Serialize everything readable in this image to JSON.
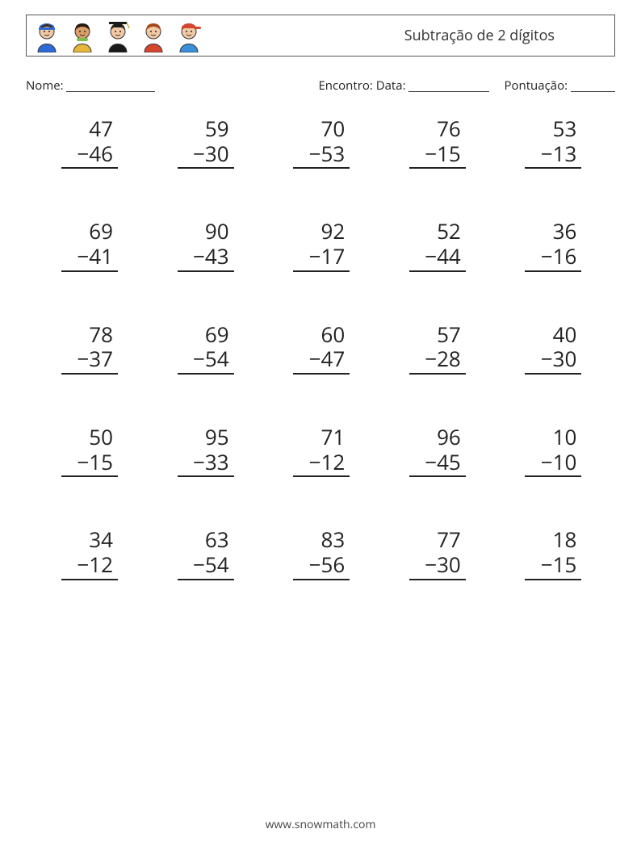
{
  "header": {
    "title": "Subtração de 2 dígitos"
  },
  "info": {
    "name_label": "Nome:",
    "name_blank_width": 110,
    "encontro_label": "Encontro: Data:",
    "encontro_blank_width": 100,
    "score_label": "Pontuação:",
    "score_blank_width": 55
  },
  "operator": "−",
  "problems": [
    {
      "a": 47,
      "b": 46
    },
    {
      "a": 59,
      "b": 30
    },
    {
      "a": 70,
      "b": 53
    },
    {
      "a": 76,
      "b": 15
    },
    {
      "a": 53,
      "b": 13
    },
    {
      "a": 69,
      "b": 41
    },
    {
      "a": 90,
      "b": 43
    },
    {
      "a": 92,
      "b": 17
    },
    {
      "a": 52,
      "b": 44
    },
    {
      "a": 36,
      "b": 16
    },
    {
      "a": 78,
      "b": 37
    },
    {
      "a": 69,
      "b": 54
    },
    {
      "a": 60,
      "b": 47
    },
    {
      "a": 57,
      "b": 28
    },
    {
      "a": 40,
      "b": 30
    },
    {
      "a": 50,
      "b": 15
    },
    {
      "a": 95,
      "b": 33
    },
    {
      "a": 71,
      "b": 12
    },
    {
      "a": 96,
      "b": 45
    },
    {
      "a": 10,
      "b": 10
    },
    {
      "a": 34,
      "b": 12
    },
    {
      "a": 63,
      "b": 54
    },
    {
      "a": 83,
      "b": 56
    },
    {
      "a": 77,
      "b": 30
    },
    {
      "a": 18,
      "b": 15
    }
  ],
  "avatars": [
    {
      "skin": "#f1c9a5",
      "shirt": "#2e6bd6",
      "hair": "#3a2a1a",
      "hat": "#2e6bd6"
    },
    {
      "skin": "#d9a06a",
      "shirt": "#e6b73a",
      "hair": "#2a1a10",
      "hat": null,
      "scarf": "#7bbf4a"
    },
    {
      "skin": "#f1c9a5",
      "shirt": "#1a1a1a",
      "hair": "#3a2a1a",
      "hat": "#1a1a1a",
      "grad": true
    },
    {
      "skin": "#f1c9a5",
      "shirt": "#d6452e",
      "hair": "#a34a1a",
      "hat": null
    },
    {
      "skin": "#f1c9a5",
      "shirt": "#3a8fd6",
      "hair": "#5a3a1a",
      "hat": "#d6452e",
      "cap": true
    }
  ],
  "footer": "www.snowmath.com",
  "colors": {
    "text": "#222222",
    "border": "#555555",
    "background": "#ffffff"
  },
  "font": {
    "title_size": 18,
    "body_size": 15,
    "number_size": 26
  }
}
